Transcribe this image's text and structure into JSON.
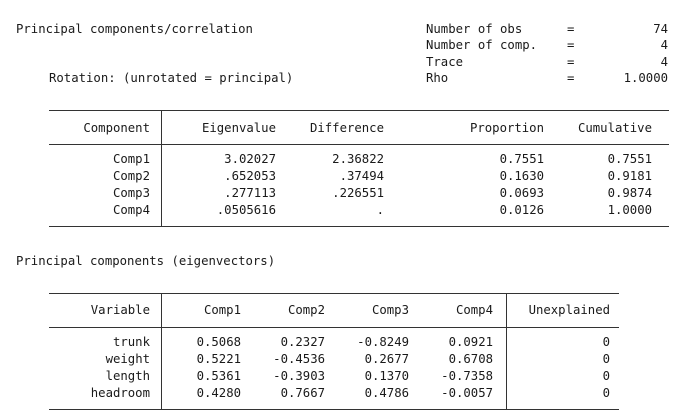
{
  "header": {
    "title": "Principal components/correlation",
    "rotation": "Rotation: (unrotated = principal)",
    "stats": [
      {
        "label": "Number of obs",
        "eq": "=",
        "value": "74"
      },
      {
        "label": "Number of comp.",
        "eq": "=",
        "value": "4"
      },
      {
        "label": "Trace",
        "eq": "=",
        "value": "4"
      },
      {
        "label": "Rho",
        "eq": "=",
        "value": "1.0000"
      }
    ]
  },
  "eigen_table": {
    "columns": [
      "Component",
      "Eigenvalue",
      "Difference",
      "Proportion",
      "Cumulative"
    ],
    "rows": [
      {
        "component": "Comp1",
        "eigenvalue": "3.02027",
        "difference": "2.36822",
        "proportion": "0.7551",
        "cumulative": "0.7551"
      },
      {
        "component": "Comp2",
        "eigenvalue": ".652053",
        "difference": ".37494",
        "proportion": "0.1630",
        "cumulative": "0.9181"
      },
      {
        "component": "Comp3",
        "eigenvalue": ".277113",
        "difference": ".226551",
        "proportion": "0.0693",
        "cumulative": "0.9874"
      },
      {
        "component": "Comp4",
        "eigenvalue": ".0505616",
        "difference": ".",
        "proportion": "0.0126",
        "cumulative": "1.0000"
      }
    ]
  },
  "eigenvectors": {
    "title": "Principal components (eigenvectors)",
    "columns": [
      "Variable",
      "Comp1",
      "Comp2",
      "Comp3",
      "Comp4",
      "Unexplained"
    ],
    "rows": [
      {
        "variable": "trunk",
        "c1": "0.5068",
        "c2": "0.2327",
        "c3": "-0.8249",
        "c4": "0.0921",
        "unexplained": "0"
      },
      {
        "variable": "weight",
        "c1": "0.5221",
        "c2": "-0.4536",
        "c3": "0.2677",
        "c4": "0.6708",
        "unexplained": "0"
      },
      {
        "variable": "length",
        "c1": "0.5361",
        "c2": "-0.3903",
        "c3": "0.1370",
        "c4": "-0.7358",
        "unexplained": "0"
      },
      {
        "variable": "headroom",
        "c1": "0.4280",
        "c2": "0.7667",
        "c3": "0.4786",
        "c4": "-0.0057",
        "unexplained": "0"
      }
    ]
  }
}
